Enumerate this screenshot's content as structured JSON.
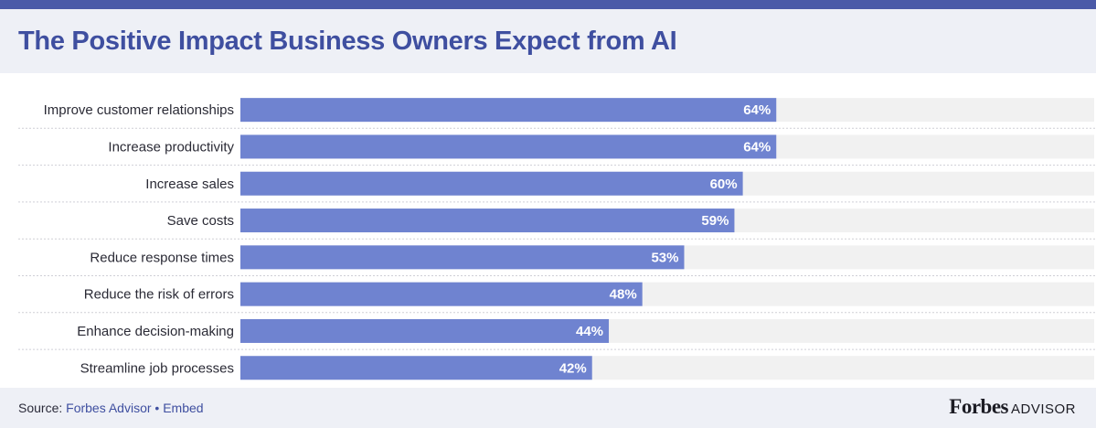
{
  "title": "The Positive Impact Business Owners Expect from AI",
  "footer": {
    "source_prefix": "Source: ",
    "source_name": "Forbes Advisor",
    "separator": " • ",
    "embed": "Embed",
    "brand_main": "Forbes",
    "brand_sub": "ADVISOR"
  },
  "colors": {
    "bar": "#6f83d0",
    "track": "#f1f1f1",
    "title": "#3f4fa0",
    "header_bg": "#eef0f6",
    "top_bar": "#4a5aa8"
  },
  "chart_data": {
    "type": "bar",
    "orientation": "horizontal",
    "categories": [
      "Improve customer relationships",
      "Increase productivity",
      "Increase sales",
      "Save costs",
      "Reduce response times",
      "Reduce the risk of errors",
      "Enhance decision-making",
      "Streamline job processes"
    ],
    "values": [
      64,
      64,
      60,
      59,
      53,
      48,
      44,
      42
    ],
    "value_labels": [
      "64%",
      "64%",
      "60%",
      "59%",
      "53%",
      "48%",
      "44%",
      "42%"
    ],
    "unit": "%",
    "xlim": [
      0,
      100
    ],
    "grid": false,
    "legend": "none"
  }
}
